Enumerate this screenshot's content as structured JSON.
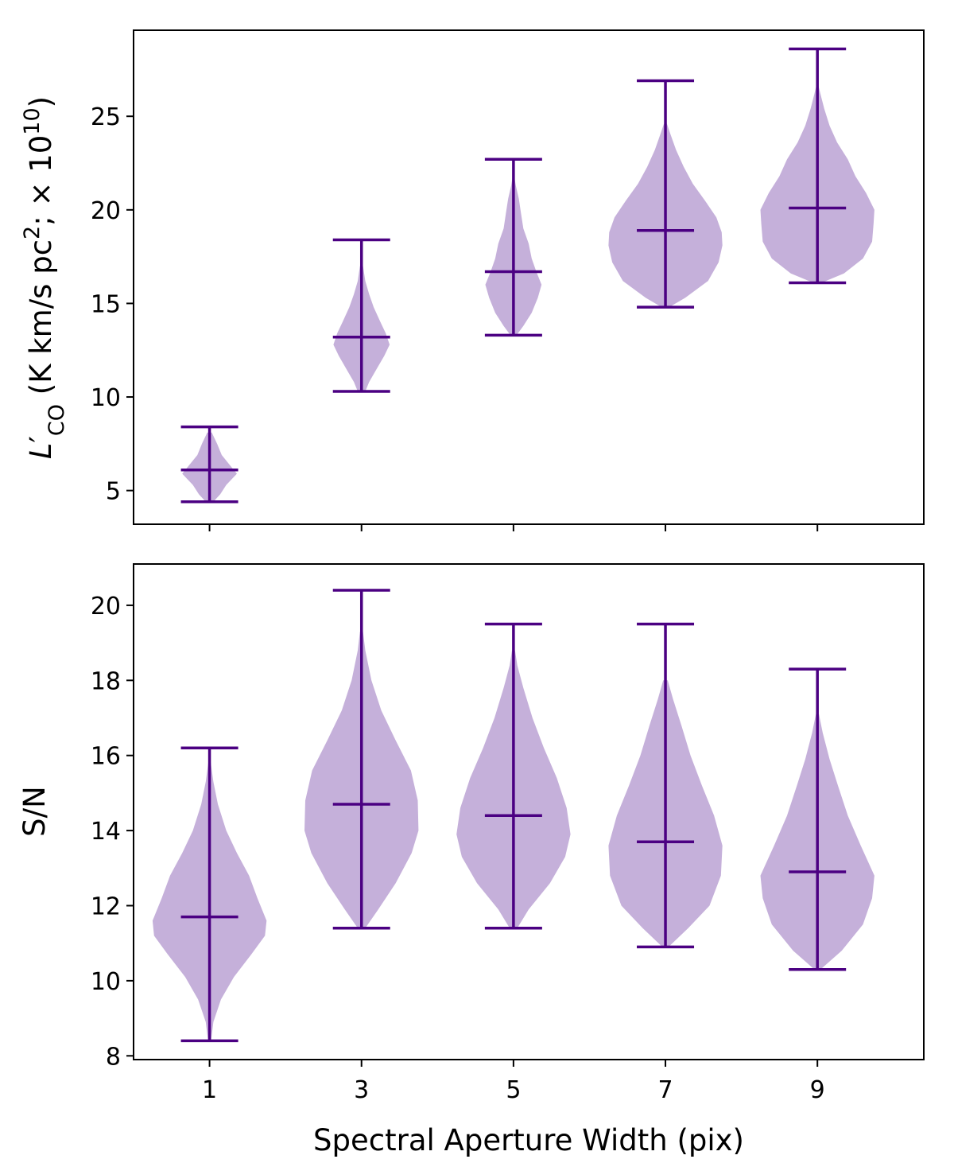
{
  "figure": {
    "xlabel": "Spectral Aperture Width (pix)",
    "violin_fill": "#c5b0da",
    "line_color": "#4b0082"
  },
  "chart_data": [
    {
      "type": "violin",
      "panel": "top",
      "ylabel": {
        "L": "L",
        "prime": "′",
        "sub": "CO",
        "unit": " (K km/s pc",
        "exp2": "2",
        "sep": ";  × 10",
        "exp10": "10",
        "close": ")"
      },
      "xlim": [
        0,
        10.4
      ],
      "ylim": [
        3.2,
        29.6
      ],
      "yticks": [
        5,
        10,
        15,
        20,
        25
      ],
      "x": [
        1,
        3,
        5,
        7,
        9
      ],
      "x_tick_labels": [
        "1",
        "3",
        "5",
        "7",
        "9"
      ],
      "show_x_tick_labels": false,
      "violins": [
        {
          "x": 1,
          "min": 4.4,
          "max": 8.4,
          "median": 6.1,
          "max_half_width": 0.36,
          "profile": [
            [
              4.4,
              0.05
            ],
            [
              4.8,
              0.14
            ],
            [
              5.3,
              0.22
            ],
            [
              5.9,
              0.36
            ],
            [
              6.3,
              0.28
            ],
            [
              6.9,
              0.16
            ],
            [
              7.5,
              0.1
            ],
            [
              8.1,
              0.03
            ]
          ]
        },
        {
          "x": 3,
          "min": 10.3,
          "max": 18.4,
          "median": 13.2,
          "max_half_width": 0.37,
          "profile": [
            [
              10.3,
              0.05
            ],
            [
              10.8,
              0.1
            ],
            [
              11.5,
              0.2
            ],
            [
              12.2,
              0.3
            ],
            [
              12.8,
              0.37
            ],
            [
              13.4,
              0.32
            ],
            [
              14.0,
              0.25
            ],
            [
              14.8,
              0.16
            ],
            [
              15.5,
              0.1
            ],
            [
              16.2,
              0.05
            ],
            [
              17.0,
              0.02
            ]
          ]
        },
        {
          "x": 5,
          "min": 13.3,
          "max": 22.7,
          "median": 16.7,
          "max_half_width": 0.37,
          "profile": [
            [
              13.3,
              0.04
            ],
            [
              13.8,
              0.13
            ],
            [
              14.5,
              0.24
            ],
            [
              15.3,
              0.32
            ],
            [
              16.0,
              0.37
            ],
            [
              16.7,
              0.3
            ],
            [
              17.4,
              0.24
            ],
            [
              18.2,
              0.2
            ],
            [
              19.0,
              0.13
            ],
            [
              19.8,
              0.1
            ],
            [
              20.6,
              0.07
            ],
            [
              21.3,
              0.03
            ],
            [
              21.8,
              0.01
            ]
          ]
        },
        {
          "x": 7,
          "min": 14.8,
          "max": 26.9,
          "median": 18.9,
          "max_half_width": 0.75,
          "profile": [
            [
              14.8,
              0.05
            ],
            [
              15.3,
              0.26
            ],
            [
              16.2,
              0.56
            ],
            [
              17.2,
              0.7
            ],
            [
              18.1,
              0.75
            ],
            [
              18.8,
              0.74
            ],
            [
              19.6,
              0.67
            ],
            [
              20.5,
              0.52
            ],
            [
              21.4,
              0.36
            ],
            [
              22.3,
              0.24
            ],
            [
              23.2,
              0.14
            ],
            [
              24.0,
              0.07
            ],
            [
              24.6,
              0.02
            ]
          ]
        },
        {
          "x": 9,
          "min": 16.1,
          "max": 28.6,
          "median": 20.1,
          "max_half_width": 0.75,
          "profile": [
            [
              16.1,
              0.05
            ],
            [
              16.6,
              0.35
            ],
            [
              17.4,
              0.6
            ],
            [
              18.3,
              0.72
            ],
            [
              19.3,
              0.74
            ],
            [
              20.0,
              0.75
            ],
            [
              20.9,
              0.64
            ],
            [
              21.8,
              0.5
            ],
            [
              22.7,
              0.4
            ],
            [
              23.6,
              0.26
            ],
            [
              24.5,
              0.16
            ],
            [
              25.4,
              0.09
            ],
            [
              26.2,
              0.04
            ],
            [
              26.7,
              0.01
            ]
          ]
        }
      ]
    },
    {
      "type": "violin",
      "panel": "bottom",
      "ylabel": "S/N",
      "xlim": [
        0,
        10.4
      ],
      "ylim": [
        7.9,
        21.1
      ],
      "yticks": [
        8,
        10,
        12,
        14,
        16,
        18,
        20
      ],
      "x": [
        1,
        3,
        5,
        7,
        9
      ],
      "x_tick_labels": [
        "1",
        "3",
        "5",
        "7",
        "9"
      ],
      "show_x_tick_labels": true,
      "violins": [
        {
          "x": 1,
          "min": 8.4,
          "max": 16.2,
          "median": 11.7,
          "max_half_width": 0.75,
          "profile": [
            [
              8.4,
              0.02
            ],
            [
              8.9,
              0.05
            ],
            [
              9.5,
              0.15
            ],
            [
              10.1,
              0.32
            ],
            [
              10.7,
              0.55
            ],
            [
              11.2,
              0.73
            ],
            [
              11.6,
              0.75
            ],
            [
              12.2,
              0.63
            ],
            [
              12.8,
              0.52
            ],
            [
              13.4,
              0.36
            ],
            [
              14.0,
              0.22
            ],
            [
              14.7,
              0.11
            ],
            [
              15.3,
              0.05
            ],
            [
              15.9,
              0.01
            ]
          ]
        },
        {
          "x": 3,
          "min": 11.4,
          "max": 20.4,
          "median": 14.7,
          "max_half_width": 0.75,
          "profile": [
            [
              11.4,
              0.05
            ],
            [
              11.9,
              0.22
            ],
            [
              12.6,
              0.45
            ],
            [
              13.4,
              0.66
            ],
            [
              14.0,
              0.75
            ],
            [
              14.8,
              0.74
            ],
            [
              15.6,
              0.65
            ],
            [
              16.4,
              0.45
            ],
            [
              17.2,
              0.26
            ],
            [
              18.0,
              0.13
            ],
            [
              18.8,
              0.05
            ],
            [
              19.3,
              0.02
            ]
          ]
        },
        {
          "x": 5,
          "min": 11.4,
          "max": 19.5,
          "median": 14.4,
          "max_half_width": 0.75,
          "profile": [
            [
              11.4,
              0.05
            ],
            [
              11.9,
              0.2
            ],
            [
              12.6,
              0.48
            ],
            [
              13.3,
              0.68
            ],
            [
              13.9,
              0.75
            ],
            [
              14.6,
              0.7
            ],
            [
              15.4,
              0.57
            ],
            [
              16.2,
              0.4
            ],
            [
              17.0,
              0.25
            ],
            [
              17.8,
              0.13
            ],
            [
              18.4,
              0.05
            ],
            [
              18.8,
              0.02
            ]
          ]
        },
        {
          "x": 7,
          "min": 10.9,
          "max": 19.5,
          "median": 13.7,
          "max_half_width": 0.75,
          "profile": [
            [
              10.9,
              0.04
            ],
            [
              11.4,
              0.3
            ],
            [
              12.0,
              0.58
            ],
            [
              12.8,
              0.73
            ],
            [
              13.6,
              0.75
            ],
            [
              14.4,
              0.64
            ],
            [
              15.2,
              0.48
            ],
            [
              16.0,
              0.33
            ],
            [
              16.8,
              0.21
            ],
            [
              17.5,
              0.1
            ],
            [
              18.0,
              0.03
            ]
          ]
        },
        {
          "x": 9,
          "min": 10.3,
          "max": 18.3,
          "median": 12.9,
          "max_half_width": 0.75,
          "profile": [
            [
              10.3,
              0.04
            ],
            [
              10.8,
              0.32
            ],
            [
              11.5,
              0.6
            ],
            [
              12.2,
              0.72
            ],
            [
              12.8,
              0.75
            ],
            [
              13.6,
              0.57
            ],
            [
              14.4,
              0.4
            ],
            [
              15.2,
              0.27
            ],
            [
              15.9,
              0.16
            ],
            [
              16.6,
              0.07
            ],
            [
              17.1,
              0.02
            ]
          ]
        }
      ]
    }
  ]
}
